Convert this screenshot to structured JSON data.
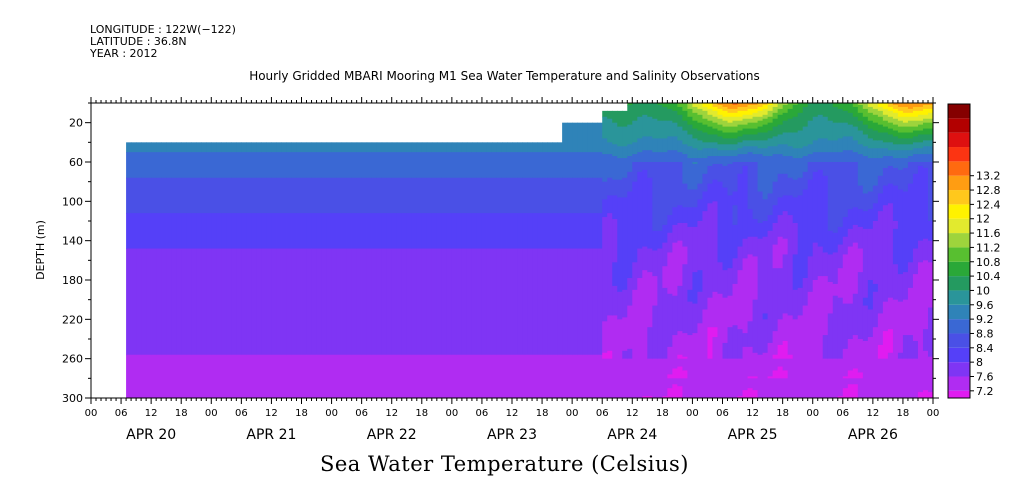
{
  "header": {
    "lines": [
      "LONGITUDE : 122W(−122)",
      "LATITUDE : 36.8N",
      "YEAR : 2012"
    ]
  },
  "chart_data": {
    "type": "heatmap",
    "title": "Hourly Gridded MBARI Mooring M1 Sea Water Temperature and Salinity Observations",
    "xlabel": "Sea Water Temperature (Celsius)",
    "ylabel": "DEPTH (m)",
    "x_range_hours_from_apr20_00": [
      0,
      168
    ],
    "y_range": [
      0,
      300
    ],
    "y_inverted": true,
    "y_ticks": [
      20,
      60,
      100,
      140,
      180,
      220,
      260,
      300
    ],
    "x_hour_ticks": [
      "00",
      "06",
      "12",
      "18",
      "00",
      "06",
      "12",
      "18",
      "00",
      "06",
      "12",
      "18",
      "00",
      "06",
      "12",
      "18",
      "00",
      "06",
      "12",
      "18",
      "00",
      "06",
      "12",
      "18",
      "00",
      "06",
      "12",
      "18",
      "00"
    ],
    "x_day_labels": [
      "APR 20",
      "APR 21",
      "APR 22",
      "APR 23",
      "APR 24",
      "APR 25",
      "APR 26"
    ],
    "colorbar": {
      "levels": [
        7.2,
        7.6,
        8,
        8.4,
        8.8,
        9.2,
        9.6,
        10,
        10.4,
        10.8,
        11.2,
        11.6,
        12,
        12.4,
        12.8,
        13.2
      ],
      "colors": [
        "#e01cf0",
        "#b02cf2",
        "#7f35f4",
        "#5540f8",
        "#4a50e6",
        "#3a68d4",
        "#2f83b8",
        "#2a959a",
        "#249a60",
        "#2aa838",
        "#58bf30",
        "#9ed43c",
        "#e2ea2e",
        "#fff200",
        "#ffc81c",
        "#ff9d12",
        "#ff6a10",
        "#fc3412",
        "#de1010",
        "#b20000",
        "#850000"
      ]
    },
    "profile_depths_m": [
      40,
      58,
      76,
      94,
      112,
      130,
      148,
      166,
      184,
      202,
      220,
      238,
      256,
      274,
      292,
      300
    ],
    "profile_temps_c": [
      9.4,
      9.0,
      8.8,
      8.6,
      8.4,
      8.2,
      8.0,
      7.9,
      7.85,
      7.8,
      7.75,
      7.7,
      7.6,
      7.45,
      7.3,
      7.25
    ],
    "data_start_hour": 7,
    "shallow_data_start_hour": 94,
    "surface_warming_start_hour": 107,
    "surface_temp_max_c": 13.2
  }
}
